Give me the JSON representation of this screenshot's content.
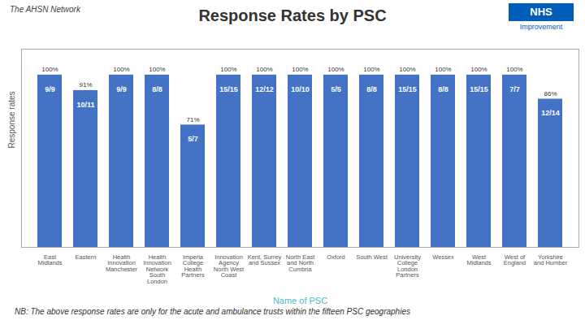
{
  "chart_data": {
    "type": "bar",
    "title": "Response Rates by PSC",
    "xlabel": "Name of PSC",
    "ylabel": "Response rates",
    "categories": [
      "East\nMidlands",
      "Eastern",
      "Health\nInnovation\nManchester",
      "Health\nInnovation\nNetwork\nSouth\nLondon",
      "Imperia\nCollege\nHealth\nPartners",
      "Innovation\nAgency\nNorth West\nCoast",
      "Kent, Surrey\nand Sussex",
      "North East\nand North\nCumbria",
      "Oxford",
      "South West",
      "University\nCollege\nLondon\nPartners",
      "Wessex",
      "West\nMidlands",
      "West of\nEngland",
      "Yorkshire\nand Humber"
    ],
    "values": [
      100,
      91,
      100,
      100,
      71,
      100,
      100,
      100,
      100,
      100,
      100,
      100,
      100,
      100,
      86
    ],
    "value_labels": [
      "100%",
      "91%",
      "100%",
      "100%",
      "71%",
      "100%",
      "100%",
      "100%",
      "100%",
      "100%",
      "100%",
      "100%",
      "100%",
      "100%",
      "86%"
    ],
    "bar_labels": [
      "9/9",
      "10/11",
      "9/9",
      "8/8",
      "5/7",
      "15/15",
      "12/12",
      "10/10",
      "5/5",
      "8/8",
      "15/15",
      "8/8",
      "15/15",
      "7/7",
      "12/14"
    ],
    "data_labels": true,
    "color": "#4472c4",
    "ylim": [
      0,
      115
    ],
    "yticks": [],
    "tick_labels": "x",
    "grid": false,
    "note": "NB: The above response rates are only for the acute and ambulance trusts within the fifteen PSC geographies",
    "annotations": [
      "The AHSN Network",
      "NHS",
      "Improvement"
    ]
  }
}
